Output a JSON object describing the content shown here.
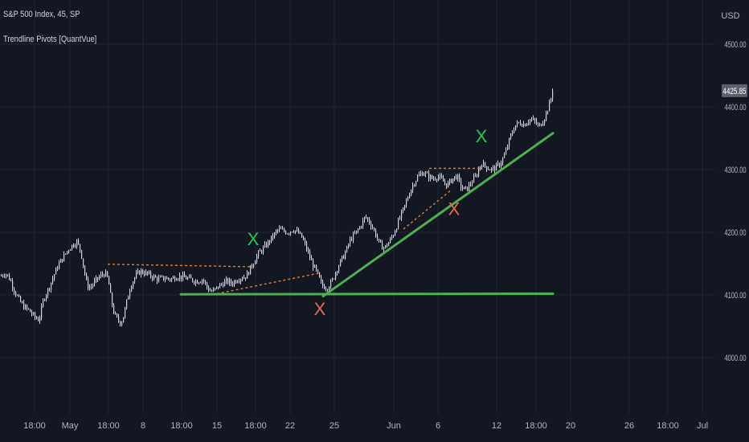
{
  "header": {
    "symbol_line": "S&P 500 Index, 45, SP",
    "indicator_line": "Trendline Pivots [QuantVue]"
  },
  "colors": {
    "background": "#131722",
    "grid": "#1f2432",
    "candle": "#d1d4dc",
    "trendline": "#4caf50",
    "pivot_line": "#e07a35",
    "marker_high": "#26c94f",
    "marker_low": "#e8674a",
    "axis_text": "#b2b5be",
    "price_label_bg": "#5d606b"
  },
  "chart_data": {
    "type": "candlestick",
    "symbol": "S&P 500 Index",
    "interval": "45",
    "exchange": "SP",
    "currency": "USD",
    "ylim": [
      3930,
      4570
    ],
    "y_ticks": [
      4000,
      4100,
      4200,
      4300,
      4400,
      4500
    ],
    "y_tick_labels": [
      "4000.00",
      "4100.00",
      "4200.00",
      "4300.00",
      "4400.00",
      "4500.00"
    ],
    "x_ticks": [
      "18:00",
      "May",
      "18:00",
      "8",
      "18:00",
      "15",
      "18:00",
      "22",
      "25",
      "Jun",
      "6",
      "12",
      "18:00",
      "20",
      "26",
      "18:00",
      "Jul"
    ],
    "last_price": 4425.85,
    "last_price_label": "4425.85",
    "price_path": [
      [
        0,
        4130
      ],
      [
        6,
        4135
      ],
      [
        12,
        4125
      ],
      [
        18,
        4105
      ],
      [
        24,
        4090
      ],
      [
        30,
        4080
      ],
      [
        36,
        4075
      ],
      [
        42,
        4065
      ],
      [
        48,
        4060
      ],
      [
        54,
        4095
      ],
      [
        60,
        4110
      ],
      [
        66,
        4130
      ],
      [
        72,
        4148
      ],
      [
        78,
        4160
      ],
      [
        84,
        4172
      ],
      [
        90,
        4180
      ],
      [
        95,
        4185
      ],
      [
        100,
        4170
      ],
      [
        104,
        4140
      ],
      [
        108,
        4115
      ],
      [
        112,
        4112
      ],
      [
        118,
        4122
      ],
      [
        124,
        4130
      ],
      [
        130,
        4135
      ],
      [
        134,
        4125
      ],
      [
        138,
        4090
      ],
      [
        142,
        4068
      ],
      [
        146,
        4060
      ],
      [
        150,
        4055
      ],
      [
        154,
        4070
      ],
      [
        158,
        4095
      ],
      [
        162,
        4115
      ],
      [
        168,
        4130
      ],
      [
        174,
        4138
      ],
      [
        180,
        4135
      ],
      [
        188,
        4130
      ],
      [
        196,
        4125
      ],
      [
        204,
        4127
      ],
      [
        212,
        4125
      ],
      [
        220,
        4130
      ],
      [
        228,
        4128
      ],
      [
        236,
        4125
      ],
      [
        244,
        4122
      ],
      [
        252,
        4125
      ],
      [
        258,
        4110
      ],
      [
        264,
        4105
      ],
      [
        270,
        4112
      ],
      [
        276,
        4118
      ],
      [
        282,
        4122
      ],
      [
        288,
        4118
      ],
      [
        294,
        4125
      ],
      [
        300,
        4128
      ],
      [
        306,
        4130
      ],
      [
        310,
        4140
      ],
      [
        316,
        4155
      ],
      [
        322,
        4168
      ],
      [
        328,
        4175
      ],
      [
        334,
        4185
      ],
      [
        340,
        4195
      ],
      [
        346,
        4205
      ],
      [
        352,
        4202
      ],
      [
        358,
        4200
      ],
      [
        364,
        4205
      ],
      [
        370,
        4200
      ],
      [
        376,
        4190
      ],
      [
        382,
        4170
      ],
      [
        388,
        4150
      ],
      [
        394,
        4135
      ],
      [
        400,
        4115
      ],
      [
        406,
        4112
      ],
      [
        412,
        4120
      ],
      [
        418,
        4140
      ],
      [
        424,
        4155
      ],
      [
        430,
        4170
      ],
      [
        436,
        4190
      ],
      [
        442,
        4198
      ],
      [
        448,
        4210
      ],
      [
        454,
        4225
      ],
      [
        460,
        4215
      ],
      [
        466,
        4200
      ],
      [
        472,
        4180
      ],
      [
        478,
        4175
      ],
      [
        484,
        4185
      ],
      [
        490,
        4200
      ],
      [
        496,
        4220
      ],
      [
        502,
        4238
      ],
      [
        508,
        4260
      ],
      [
        514,
        4278
      ],
      [
        520,
        4290
      ],
      [
        526,
        4296
      ],
      [
        532,
        4290
      ],
      [
        538,
        4285
      ],
      [
        544,
        4290
      ],
      [
        550,
        4282
      ],
      [
        556,
        4275
      ],
      [
        562,
        4285
      ],
      [
        568,
        4290
      ],
      [
        574,
        4270
      ],
      [
        580,
        4268
      ],
      [
        586,
        4280
      ],
      [
        592,
        4290
      ],
      [
        598,
        4310
      ],
      [
        604,
        4305
      ],
      [
        610,
        4300
      ],
      [
        616,
        4303
      ],
      [
        622,
        4310
      ],
      [
        628,
        4325
      ],
      [
        634,
        4350
      ],
      [
        640,
        4370
      ],
      [
        646,
        4375
      ],
      [
        652,
        4372
      ],
      [
        658,
        4380
      ],
      [
        664,
        4378
      ],
      [
        670,
        4368
      ],
      [
        676,
        4380
      ],
      [
        682,
        4400
      ],
      [
        688,
        4425.85
      ]
    ],
    "trendlines": [
      {
        "role": "support-horizontal",
        "from": [
          225,
          4101
        ],
        "to": [
          688,
          4102
        ]
      },
      {
        "role": "support-rising",
        "from": [
          402,
          4098
        ],
        "to": [
          688,
          4358
        ]
      }
    ],
    "pivot_lines": [
      {
        "from": [
          134,
          4149
        ],
        "to": [
          312,
          4145
        ]
      },
      {
        "from": [
          270,
          4102
        ],
        "to": [
          398,
          4135
        ]
      },
      {
        "from": [
          502,
          4205
        ],
        "to": [
          562,
          4268
        ]
      },
      {
        "from": [
          534,
          4302
        ],
        "to": [
          598,
          4302
        ]
      }
    ],
    "markers": [
      {
        "label": "X",
        "kind": "high",
        "x": 315,
        "price": 4190
      },
      {
        "label": "X",
        "kind": "low",
        "x": 398,
        "price": 4078
      },
      {
        "label": "X",
        "kind": "low",
        "x": 565,
        "price": 4238
      },
      {
        "label": "X",
        "kind": "high",
        "x": 599,
        "price": 4354
      }
    ]
  }
}
